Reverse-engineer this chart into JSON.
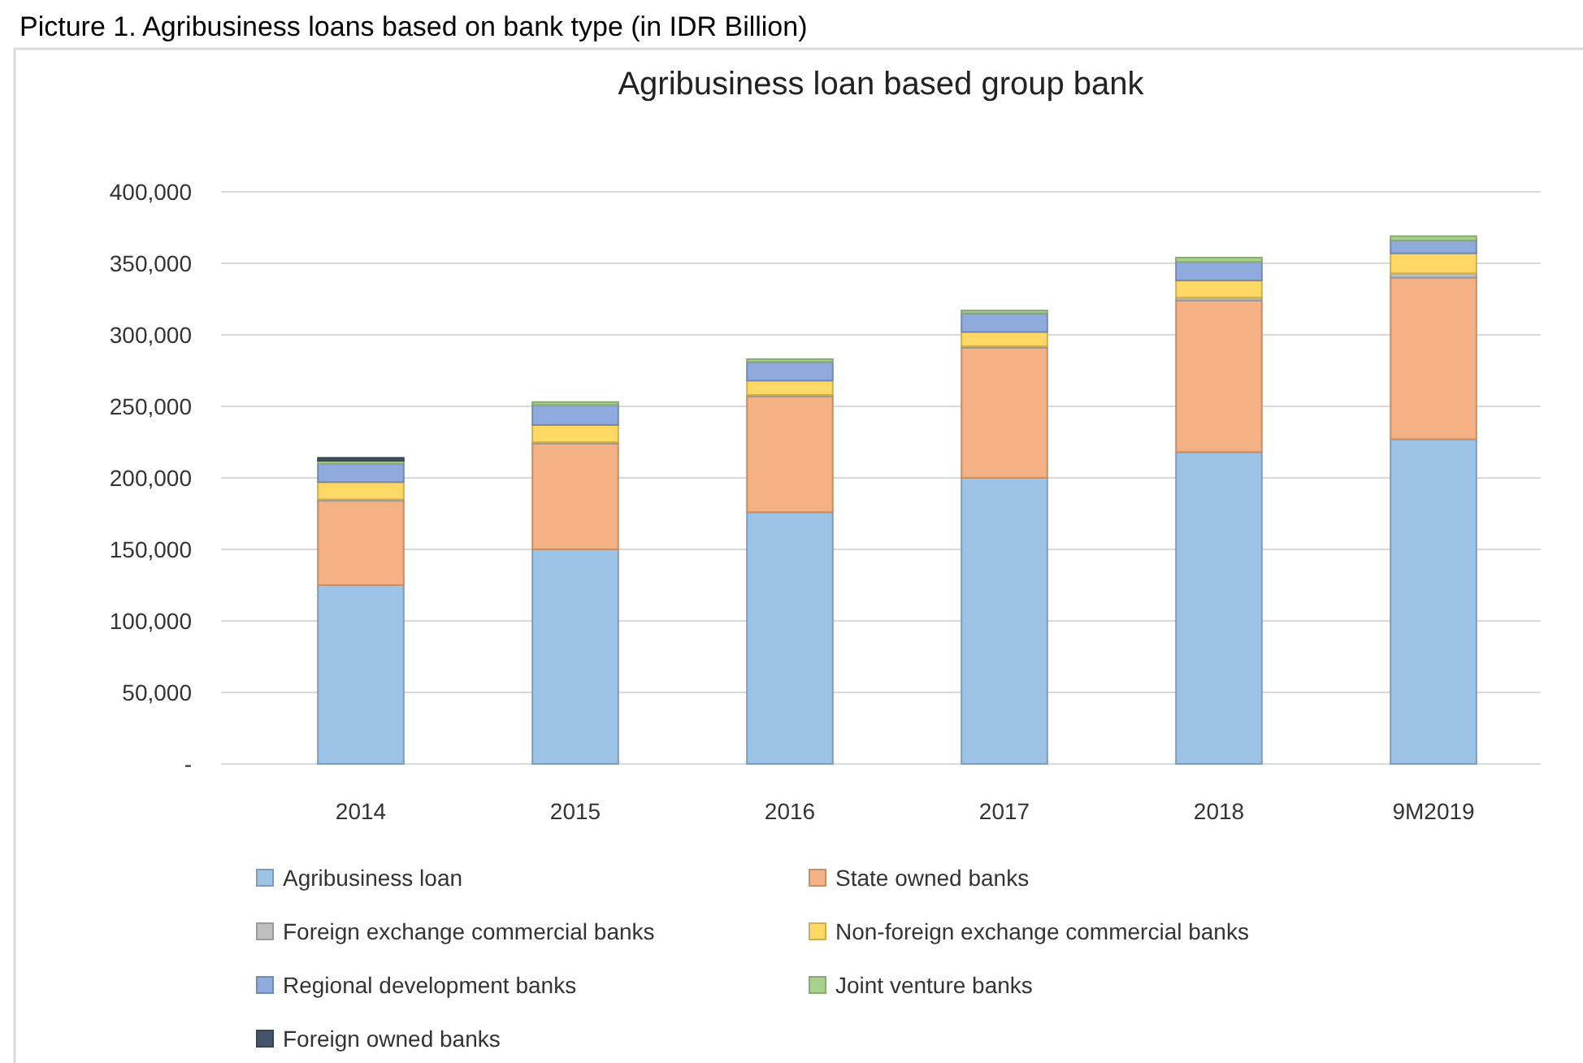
{
  "chart_data": {
    "type": "bar",
    "stacked": true,
    "title": "Agribusiness loan based group bank",
    "subtitle": "Picture 1. Agribusiness loans based on bank type (in IDR Billion)",
    "categories": [
      "2014",
      "2015",
      "2016",
      "2017",
      "2018",
      "9M2019"
    ],
    "series": [
      {
        "name": "Agribusiness loan",
        "color": "#9dc3e6",
        "values": [
          125000,
          150000,
          176000,
          200000,
          218000,
          227000
        ]
      },
      {
        "name": "State owned banks",
        "color": "#f4b183",
        "values": [
          59000,
          74000,
          81000,
          91000,
          106000,
          113000
        ]
      },
      {
        "name": "Foreign exchange commercial banks",
        "color": "#bfbfbf",
        "values": [
          1000,
          1000,
          1000,
          1000,
          2000,
          3000
        ]
      },
      {
        "name": "Non-foreign exchange commercial banks",
        "color": "#ffd966",
        "values": [
          12000,
          12000,
          10000,
          10000,
          12000,
          14000
        ]
      },
      {
        "name": "Regional development banks",
        "color": "#8faadc",
        "values": [
          13000,
          14000,
          13000,
          13000,
          13000,
          9000
        ]
      },
      {
        "name": "Joint venture banks",
        "color": "#a9d18e",
        "values": [
          2000,
          2000,
          2000,
          2000,
          3000,
          3000
        ]
      },
      {
        "name": "Foreign owned banks",
        "color": "#44546a",
        "values": [
          2000,
          0,
          0,
          0,
          0,
          0
        ]
      }
    ],
    "ylim": [
      0,
      400000
    ],
    "yticks": [
      {
        "value": 0,
        "label": "-"
      },
      {
        "value": 50000,
        "label": "50,000"
      },
      {
        "value": 100000,
        "label": "100,000"
      },
      {
        "value": 150000,
        "label": "150,000"
      },
      {
        "value": 200000,
        "label": "200,000"
      },
      {
        "value": 250000,
        "label": "250,000"
      },
      {
        "value": 300000,
        "label": "300,000"
      },
      {
        "value": 350000,
        "label": "350,000"
      },
      {
        "value": 400000,
        "label": "400,000"
      }
    ],
    "grid": "y",
    "legend": "bottom"
  }
}
